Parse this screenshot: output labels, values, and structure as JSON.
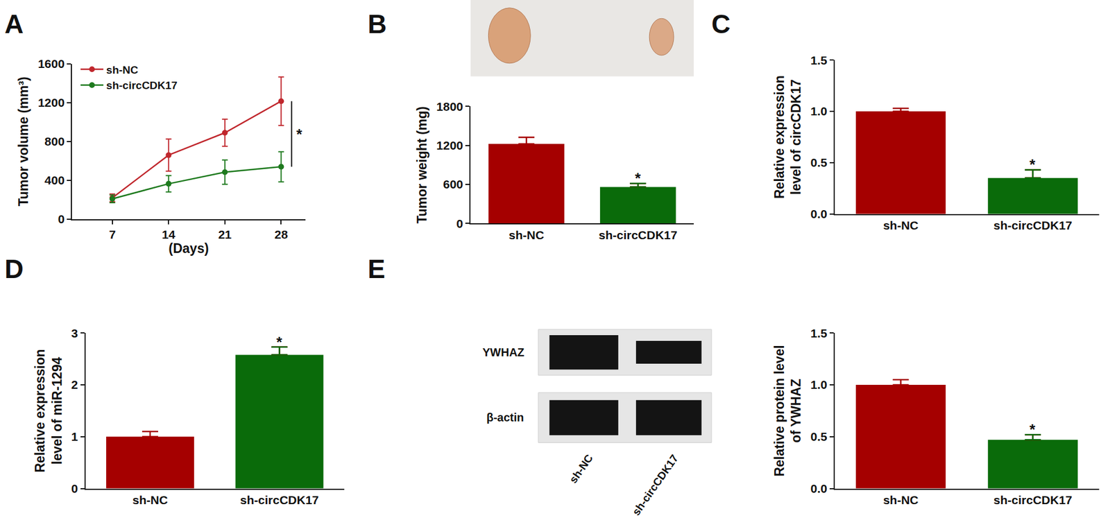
{
  "chart_data": [
    {
      "panel": "A",
      "type": "line",
      "xlabel": "(Days)",
      "ylabel": "Tumor volume (mm³)",
      "x": [
        7,
        14,
        21,
        28
      ],
      "xlim": [
        2,
        31
      ],
      "xticks": [
        7,
        14,
        21,
        28
      ],
      "ylim": [
        0,
        1600
      ],
      "yticks": [
        0,
        400,
        800,
        1200,
        1600
      ],
      "legend": "top left",
      "marker": "circle",
      "series": [
        {
          "name": "sh-NC",
          "color": "#c0272d",
          "values": [
            220,
            660,
            890,
            1215
          ],
          "errors": [
            40,
            165,
            140,
            250
          ]
        },
        {
          "name": "sh-circCDK17",
          "color": "#1e7a1e",
          "values": [
            210,
            365,
            485,
            540
          ],
          "errors": [
            40,
            85,
            125,
            155
          ]
        }
      ],
      "annotations": [
        {
          "text": "*"
        }
      ]
    },
    {
      "panel": "B",
      "type": "bar",
      "ylabel": [
        "Tumor weight (mg)"
      ],
      "categories": [
        "sh-NC",
        "sh-circCDK17"
      ],
      "values": [
        1225,
        560
      ],
      "errors": [
        100,
        55
      ],
      "colors": [
        "#a50000",
        "#0a6b0a"
      ],
      "ylim": [
        0,
        1800
      ],
      "yticks": [
        0,
        600,
        1200,
        1800
      ],
      "annotations": [
        {
          "text": "*",
          "category": "sh-circCDK17"
        }
      ]
    },
    {
      "panel": "C",
      "type": "bar",
      "ylabel": [
        "Relative expression",
        "level of circCDK17"
      ],
      "categories": [
        "sh-NC",
        "sh-circCDK17"
      ],
      "values": [
        1.0,
        0.35
      ],
      "errors": [
        0.03,
        0.08
      ],
      "colors": [
        "#a50000",
        "#0a6b0a"
      ],
      "ylim": [
        0,
        1.5
      ],
      "yticks": [
        {
          "value": 0,
          "label": "0.0"
        },
        0.5,
        {
          "value": 1,
          "label": "1.0"
        },
        1.5
      ],
      "annotations": [
        {
          "text": "*",
          "category": "sh-circCDK17"
        }
      ]
    },
    {
      "panel": "D",
      "type": "bar",
      "ylabel": [
        "Relative expression",
        "level of miR-1294"
      ],
      "categories": [
        "sh-NC",
        "sh-circCDK17"
      ],
      "values": [
        1.0,
        2.58
      ],
      "errors": [
        0.1,
        0.15
      ],
      "colors": [
        "#a50000",
        "#0a6b0a"
      ],
      "ylim": [
        0,
        3
      ],
      "yticks": [
        0,
        1,
        2,
        3
      ],
      "annotations": [
        {
          "text": "*",
          "category": "sh-circCDK17"
        }
      ]
    },
    {
      "panel": "E",
      "type": "bar",
      "ylabel": [
        "Relative protein level",
        "of YWHAZ"
      ],
      "categories": [
        "sh-NC",
        "sh-circCDK17"
      ],
      "values": [
        1.0,
        0.47
      ],
      "errors": [
        0.05,
        0.05
      ],
      "colors": [
        "#a50000",
        "#0a6b0a"
      ],
      "ylim": [
        0,
        1.5
      ],
      "yticks": [
        {
          "value": 0,
          "label": "0.0"
        },
        0.5,
        {
          "value": 1,
          "label": "1.0"
        },
        1.5
      ],
      "annotations": [
        {
          "text": "*",
          "category": "sh-circCDK17"
        }
      ],
      "blot": {
        "rows": [
          "YWHAZ",
          "β-actin"
        ],
        "lanes": [
          "sh-NC",
          "sh-circCDK17"
        ]
      }
    }
  ]
}
